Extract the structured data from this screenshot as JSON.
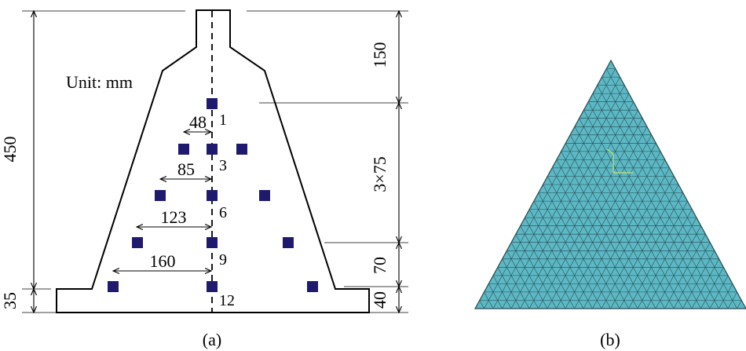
{
  "panel_a": {
    "caption": "(a)",
    "unit_label": "Unit: mm",
    "dimensions": {
      "total_height": "450",
      "stem_height": "150",
      "bar_spacing": "3×75",
      "lower_offset": "70",
      "base_thickness_right": "40",
      "base_thickness_left": "35"
    },
    "offsets": {
      "row1": "48",
      "row2": "85",
      "row3": "123",
      "row4": "160"
    },
    "bar_labels": [
      "1",
      "3",
      "6",
      "9",
      "12"
    ],
    "bar_color": "#1f1a6e"
  },
  "panel_b": {
    "caption": "(b)",
    "mesh_fill": "#5cb8c4",
    "mesh_line": "#24494f"
  }
}
